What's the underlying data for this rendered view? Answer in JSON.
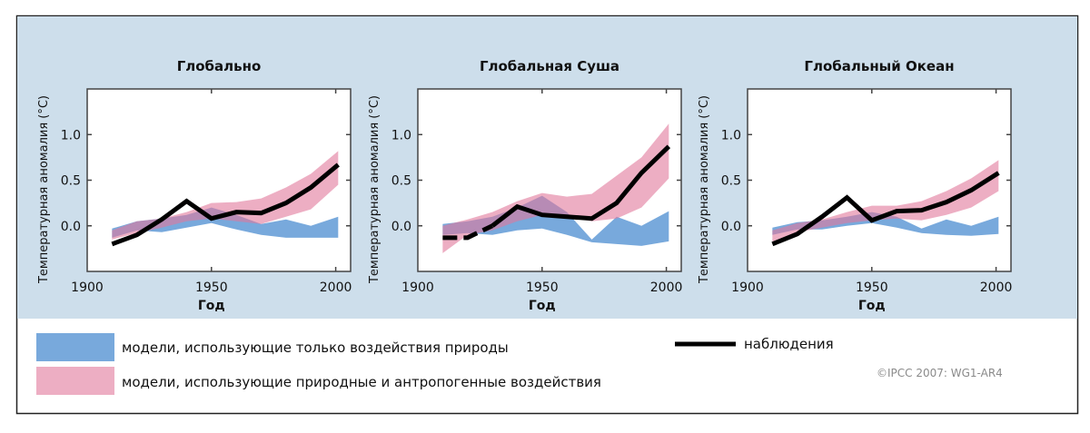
{
  "colors": {
    "background": "#cddeeb",
    "natural": "#78a9dc",
    "anthropogenic": "#e1789b",
    "observed": "#000000",
    "copyright": "#8a8a8a"
  },
  "legend": {
    "natural": "модели, использующие только воздействия природы",
    "anthropogenic": "модели, использующие природные и антропогенные воздействия",
    "observed": "наблюдения"
  },
  "copyright": "©IPCC  2007: WG1-AR4",
  "chart_data": [
    {
      "type": "area",
      "title": "Глобально",
      "xlabel": "Год",
      "ylabel": "Температурная аномалия (°C)",
      "xlim": [
        1900,
        2006
      ],
      "ylim": [
        -0.5,
        1.5
      ],
      "xticks": [
        "1900",
        "1950",
        "2000"
      ],
      "yticks": [
        "0.0",
        "0.5",
        "1.0"
      ],
      "x": [
        1910,
        1920,
        1930,
        1940,
        1950,
        1960,
        1970,
        1980,
        1990,
        2001
      ],
      "series": [
        {
          "name": "модели, использующие только воздействия природы",
          "upper": [
            -0.03,
            0.05,
            0.08,
            0.12,
            0.2,
            0.12,
            0.02,
            0.07,
            0.0,
            0.1
          ],
          "lower": [
            -0.13,
            -0.05,
            -0.07,
            -0.02,
            0.03,
            -0.04,
            -0.1,
            -0.13,
            -0.13,
            -0.13
          ]
        },
        {
          "name": "модели, использующие природные и антропогенные воздействия",
          "upper": [
            -0.05,
            0.05,
            0.08,
            0.15,
            0.25,
            0.26,
            0.3,
            0.42,
            0.57,
            0.82
          ],
          "lower": [
            -0.15,
            -0.08,
            -0.02,
            0.05,
            0.08,
            0.05,
            0.02,
            0.1,
            0.18,
            0.45
          ]
        },
        {
          "name": "наблюдения",
          "values": [
            -0.2,
            -0.1,
            0.07,
            0.27,
            0.08,
            0.15,
            0.14,
            0.25,
            0.42,
            0.67
          ],
          "dashed_until": null
        }
      ]
    },
    {
      "type": "area",
      "title": "Глобальная Суша",
      "xlabel": "Год",
      "ylabel": "Температурная аномалия (°C)",
      "xlim": [
        1900,
        2006
      ],
      "ylim": [
        -0.5,
        1.5
      ],
      "xticks": [
        "1900",
        "1950",
        "2000"
      ],
      "yticks": [
        "0.0",
        "0.5",
        "1.0"
      ],
      "x": [
        1910,
        1920,
        1930,
        1940,
        1950,
        1960,
        1970,
        1980,
        1990,
        2001
      ],
      "series": [
        {
          "name": "модели, использующие только воздействия природы",
          "upper": [
            0.02,
            0.05,
            0.1,
            0.2,
            0.33,
            0.15,
            -0.15,
            0.1,
            0.0,
            0.16
          ],
          "lower": [
            -0.1,
            -0.08,
            -0.1,
            -0.05,
            -0.03,
            -0.1,
            -0.18,
            -0.2,
            -0.22,
            -0.17
          ]
        },
        {
          "name": "модели, использующие природные и антропогенные воздействия",
          "upper": [
            0.0,
            0.07,
            0.15,
            0.27,
            0.36,
            0.32,
            0.35,
            0.55,
            0.75,
            1.12
          ],
          "lower": [
            -0.3,
            -0.1,
            -0.05,
            0.05,
            0.12,
            0.1,
            0.05,
            0.08,
            0.2,
            0.52
          ]
        },
        {
          "name": "наблюдения",
          "values": [
            -0.13,
            -0.13,
            0.0,
            0.21,
            0.12,
            0.1,
            0.08,
            0.25,
            0.58,
            0.87
          ],
          "dashed_until": 1930
        }
      ]
    },
    {
      "type": "area",
      "title": "Глобальный Океан",
      "xlabel": "Год",
      "ylabel": "Температурная аномалия (°C)",
      "xlim": [
        1900,
        2006
      ],
      "ylim": [
        -0.5,
        1.5
      ],
      "xticks": [
        "1900",
        "1950",
        "2000"
      ],
      "yticks": [
        "0.0",
        "0.5",
        "1.0"
      ],
      "x": [
        1910,
        1920,
        1930,
        1940,
        1950,
        1960,
        1970,
        1980,
        1990,
        2001
      ],
      "series": [
        {
          "name": "модели, использующие только воздействия природы",
          "upper": [
            -0.02,
            0.04,
            0.06,
            0.1,
            0.15,
            0.1,
            -0.03,
            0.07,
            0.0,
            0.1
          ],
          "lower": [
            -0.1,
            -0.04,
            -0.04,
            0.0,
            0.03,
            -0.02,
            -0.08,
            -0.1,
            -0.11,
            -0.09
          ]
        },
        {
          "name": "модели, использующие природные и антропогенные воздействия",
          "upper": [
            -0.05,
            0.03,
            0.07,
            0.15,
            0.22,
            0.22,
            0.27,
            0.38,
            0.52,
            0.72
          ],
          "lower": [
            -0.17,
            -0.07,
            -0.02,
            0.03,
            0.06,
            0.08,
            0.06,
            0.12,
            0.2,
            0.38
          ]
        },
        {
          "name": "наблюдения",
          "values": [
            -0.2,
            -0.09,
            0.1,
            0.31,
            0.06,
            0.16,
            0.17,
            0.26,
            0.39,
            0.58
          ],
          "dashed_until": null
        }
      ]
    }
  ]
}
